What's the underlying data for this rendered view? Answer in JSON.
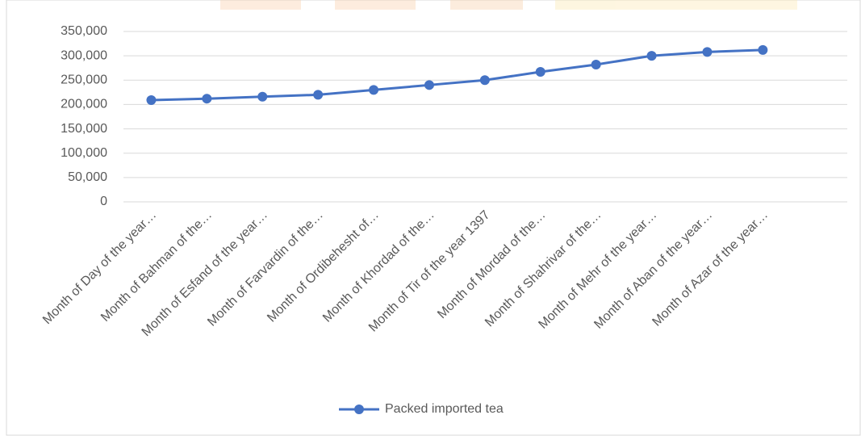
{
  "chart_data": {
    "type": "line",
    "categories": [
      "Month of Day of the year…",
      "Month of Bahman of the…",
      "Month of Esfand of the year…",
      "Month of Farvardin of the…",
      "Month of Ordibehesht of…",
      "Month of Khordad of the…",
      "Month of Tir of the year 1397",
      "Month of Mordad of the…",
      "Month of Shahrivar of the…",
      "Month of Mehr of the year…",
      "Month of Aban of the year…",
      "Month of Azar of the year…"
    ],
    "series": [
      {
        "name": "Packed imported tea",
        "color": "#4472c4",
        "values": [
          209000,
          212000,
          216000,
          220000,
          230000,
          240000,
          250000,
          267000,
          282000,
          300000,
          308000,
          312000
        ]
      }
    ],
    "ylim": [
      0,
      350000
    ],
    "yticks": [
      0,
      {
        "value": 50000,
        "label": "50,000"
      },
      {
        "value": 100000,
        "label": "100,000"
      },
      {
        "value": 150000,
        "label": "150,000"
      },
      {
        "value": 200000,
        "label": "200,000"
      },
      {
        "value": 250000,
        "label": "250,000"
      },
      {
        "value": 300000,
        "label": "300,000"
      },
      {
        "value": 350000,
        "label": "350,000"
      }
    ],
    "grid": true,
    "legend": "bottom"
  }
}
